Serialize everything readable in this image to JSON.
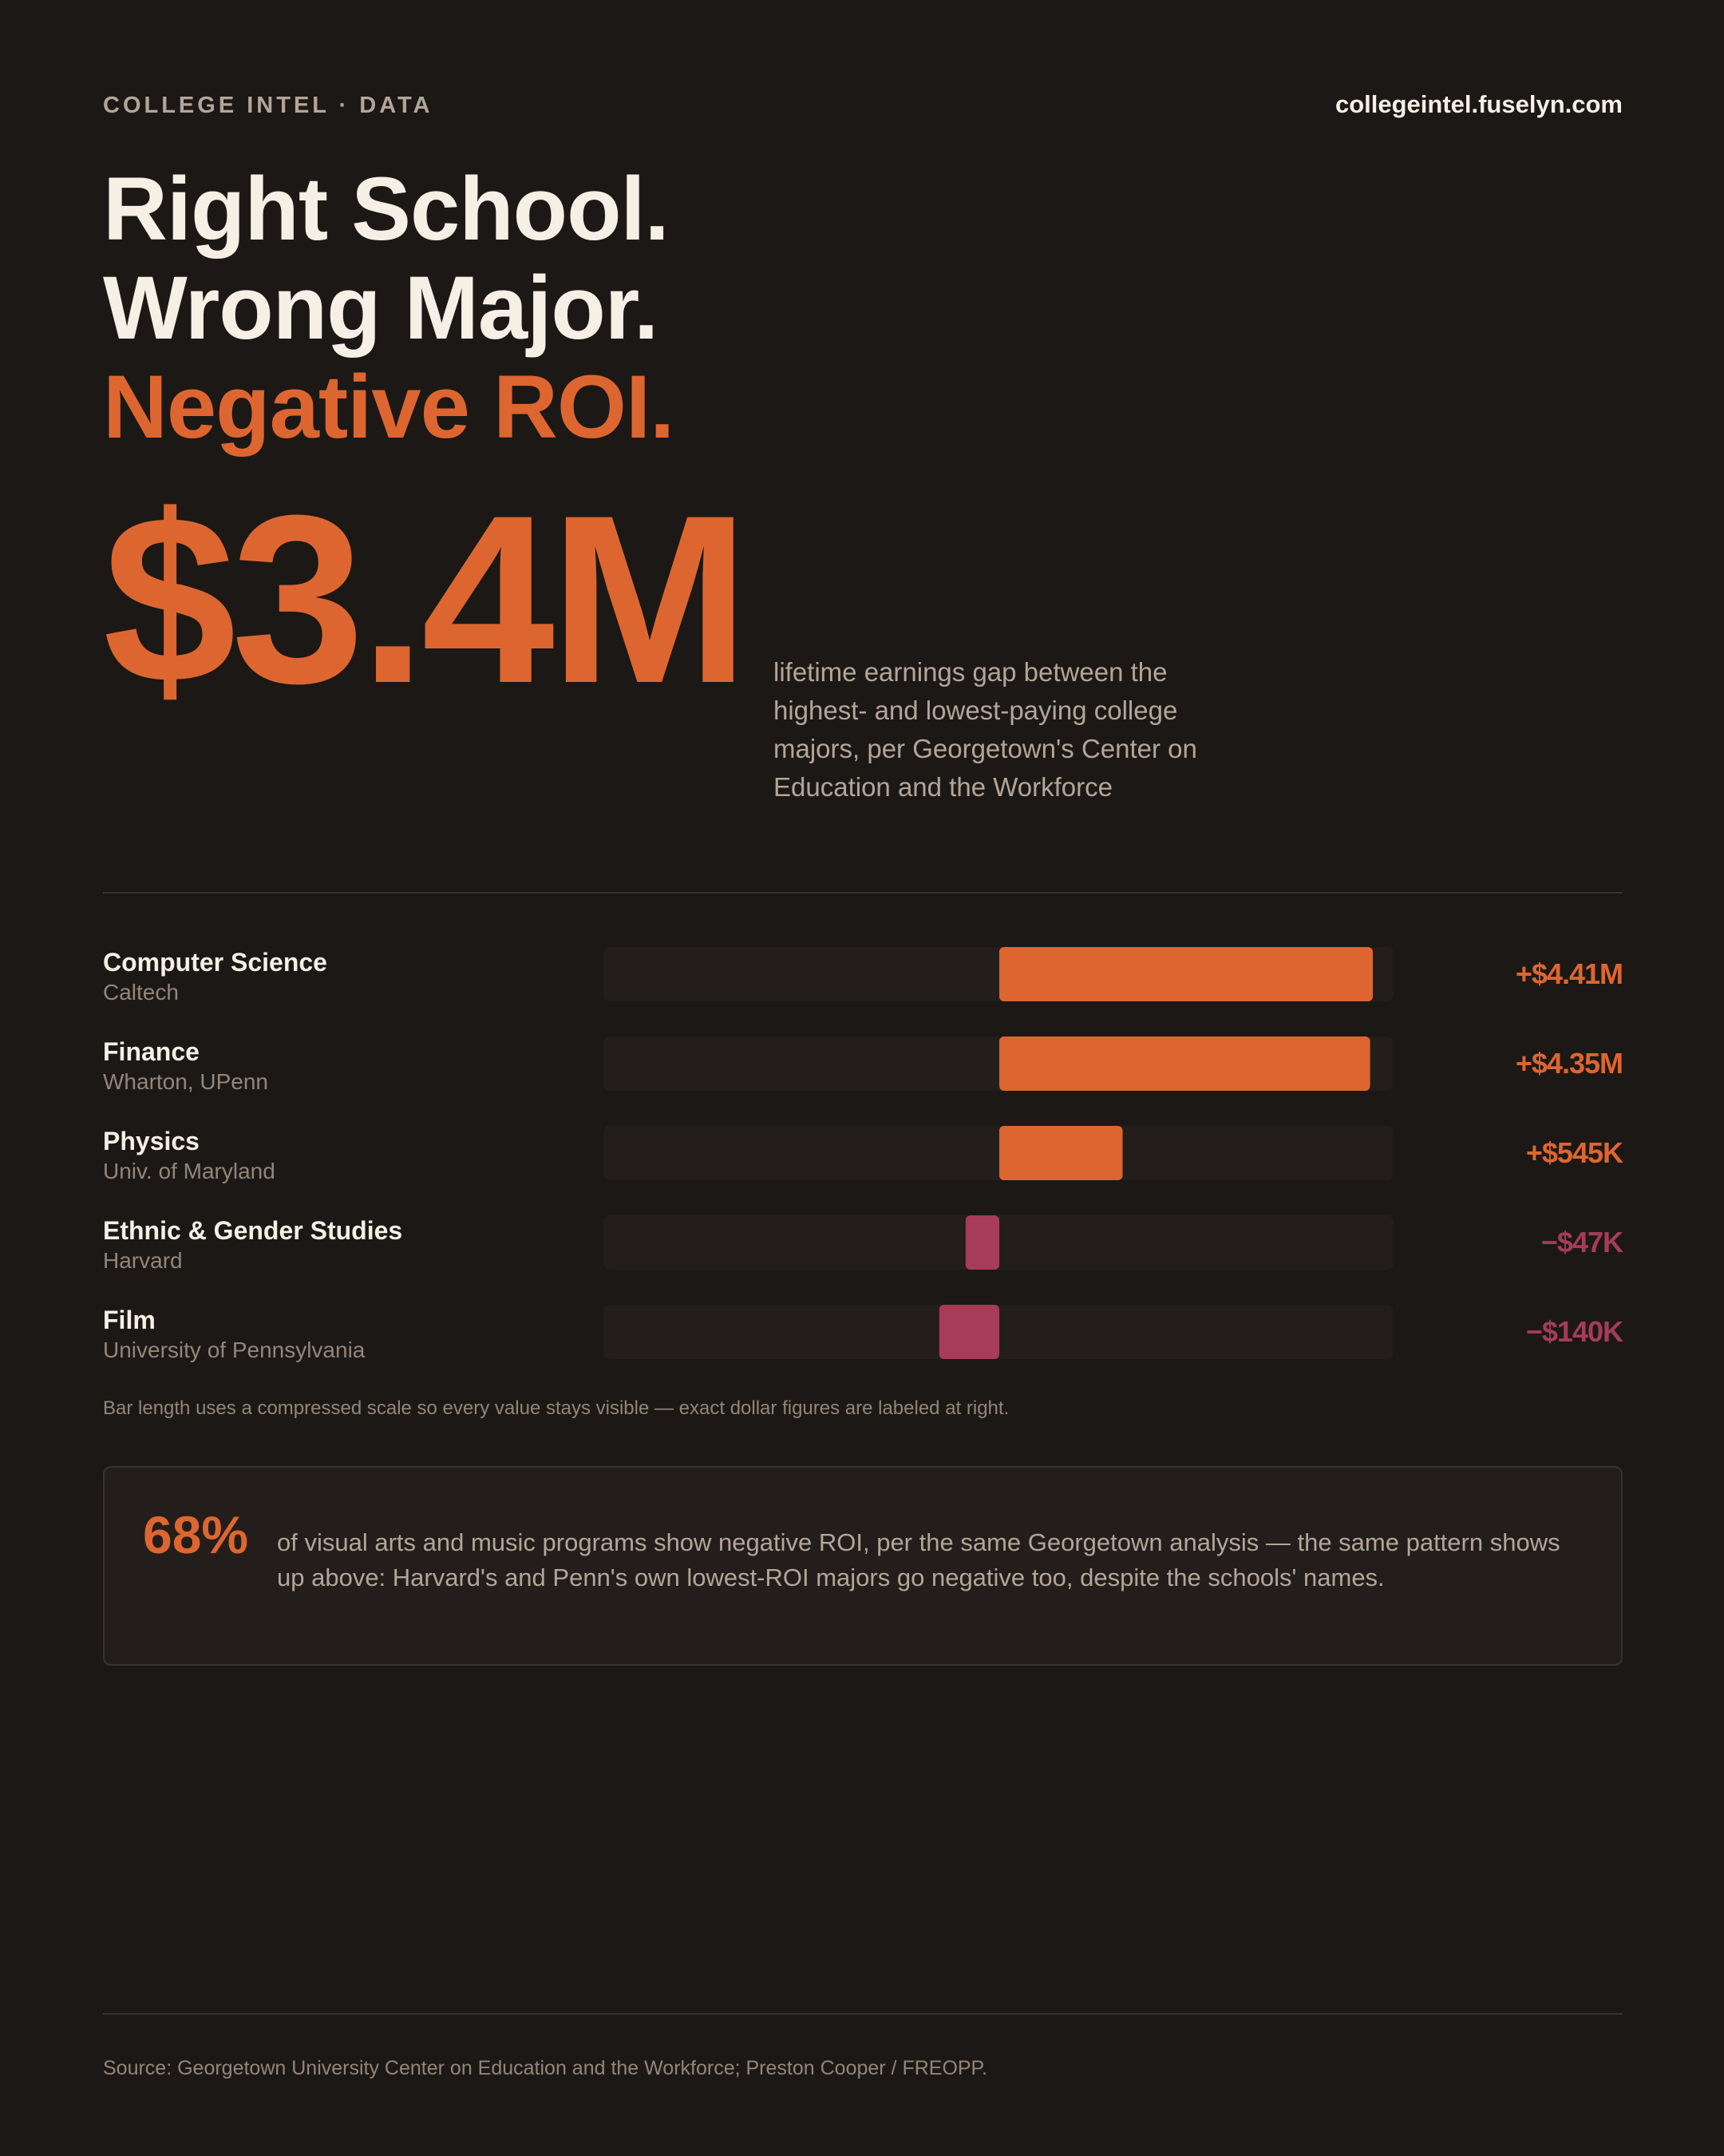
{
  "header": {
    "brand": "COLLEGE INTEL · DATA",
    "site": "collegeintel.fuselyn.com"
  },
  "headline": {
    "line1": "Right School.",
    "line2": "Wrong Major.",
    "line3": "Negative ROI."
  },
  "stat": {
    "value": "$3.4M",
    "description": "lifetime earnings gap between the highest- and lowest-paying college majors, per Georgetown's Center on Education and the Workforce"
  },
  "colors": {
    "background": "#1c1816",
    "positive": "#dd6630",
    "negative": "#a63c58",
    "track": "#231e1b",
    "text": "#f6efe6",
    "muted": "#b3a698"
  },
  "chart_data": {
    "type": "bar",
    "orientation": "horizontal-diverging",
    "scale": "compressed",
    "categories": [
      "Computer Science",
      "Finance",
      "Physics",
      "Ethnic & Gender Studies",
      "Film"
    ],
    "schools": [
      "Caltech",
      "Wharton, UPenn",
      "Univ. of Maryland",
      "Harvard",
      "University of Pennsylvania"
    ],
    "values": [
      4410000,
      4350000,
      545000,
      -47000,
      -140000
    ],
    "value_labels": [
      "+$4.41M",
      "+$4.35M",
      "+$545K",
      "−$47K",
      "−$140K"
    ],
    "note": "Bar length uses a compressed scale so every value stays visible — exact dollar figures are labeled at right."
  },
  "callout": {
    "percent": "68%",
    "text": "of visual arts and music programs show negative ROI, per the same Georgetown analysis — the same pattern shows up above: Harvard's and Penn's own lowest-ROI majors go negative too, despite the schools' names."
  },
  "footer": {
    "source": "Source: Georgetown University Center on Education and the Workforce; Preston Cooper / FREOPP."
  }
}
